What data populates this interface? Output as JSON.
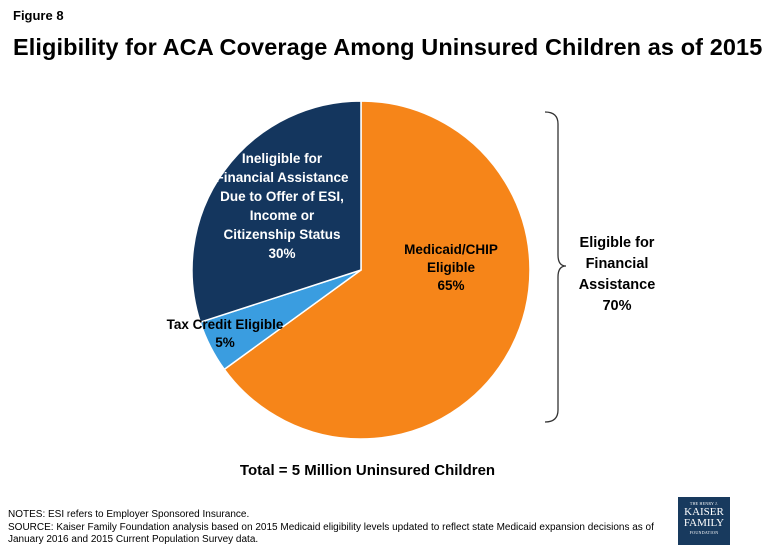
{
  "figure_label": "Figure 8",
  "chart_data": {
    "type": "pie",
    "title": "Eligibility for ACA Coverage Among Uninsured Children as of 2015",
    "slices": [
      {
        "name": "medicaid",
        "label_lines": [
          "Medicaid/CHIP",
          "Eligible",
          "65%"
        ],
        "value": 65,
        "color": "#f68519",
        "label_color": "#000000"
      },
      {
        "name": "tax-credit",
        "label_lines": [
          "Tax Credit Eligible",
          "5%"
        ],
        "value": 5,
        "color": "#3a9de0",
        "label_color": "#000000"
      },
      {
        "name": "ineligible",
        "label_lines": [
          "Ineligible for",
          "Financial Assistance",
          "Due to Offer of ESI,",
          "Income or",
          "Citizenship Status",
          "30%"
        ],
        "value": 30,
        "color": "#14365e",
        "label_color": "#ffffff"
      }
    ],
    "bracket_label_lines": [
      "Eligible for",
      "Financial",
      "Assistance",
      "70%"
    ],
    "total_label": "Total = 5 Million Uninsured Children"
  },
  "notes": {
    "line1": "NOTES: ESI refers to Employer Sponsored Insurance.",
    "line2": "SOURCE: Kaiser Family Foundation analysis based on 2015 Medicaid eligibility levels updated to reflect state Medicaid expansion decisions as of January 2016 and 2015 Current Population Survey data."
  },
  "logo": {
    "line0": "THE HENRY J.",
    "line1": "KAISER",
    "line2": "FAMILY",
    "line3": "FOUNDATION"
  }
}
